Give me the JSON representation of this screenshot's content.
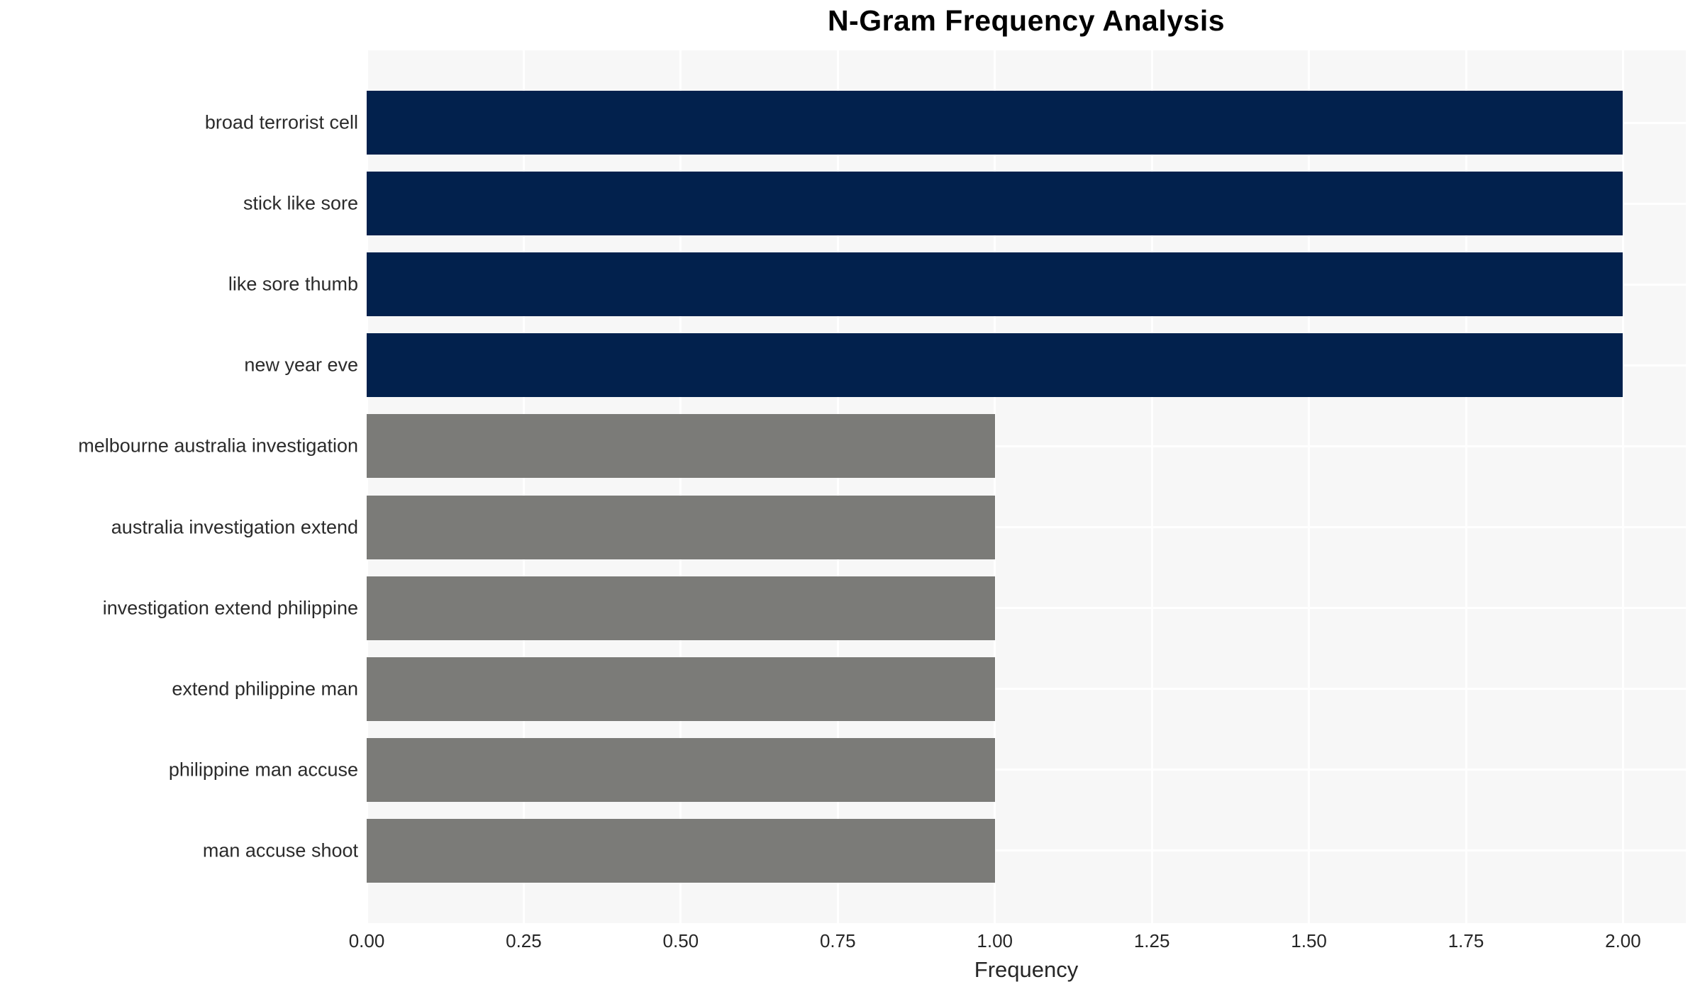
{
  "title": "N-Gram Frequency Analysis",
  "chart_data": {
    "type": "bar",
    "orientation": "horizontal",
    "title": "N-Gram Frequency Analysis",
    "xlabel": "Frequency",
    "ylabel": "",
    "categories": [
      "broad terrorist cell",
      "stick like sore",
      "like sore thumb",
      "new year eve",
      "melbourne australia investigation",
      "australia investigation extend",
      "investigation extend philippine",
      "extend philippine man",
      "philippine man accuse",
      "man accuse shoot"
    ],
    "values": [
      2,
      2,
      2,
      2,
      1,
      1,
      1,
      1,
      1,
      1
    ],
    "bar_colors": [
      "#02214d",
      "#02214d",
      "#02214d",
      "#02214d",
      "#7b7b78",
      "#7b7b78",
      "#7b7b78",
      "#7b7b78",
      "#7b7b78",
      "#7b7b78"
    ],
    "xlim": [
      0,
      2.1
    ],
    "xticks": [
      0,
      0.25,
      0.5,
      0.75,
      1.0,
      1.25,
      1.5,
      1.75,
      2.0
    ],
    "xtick_labels": [
      "0.00",
      "0.25",
      "0.50",
      "0.75",
      "1.00",
      "1.25",
      "1.50",
      "1.75",
      "2.00"
    ],
    "grid": true,
    "legend": "none",
    "colors": {
      "plot_background": "#f7f7f7",
      "grid": "#ffffff",
      "tick_text": "#262626",
      "title_text": "#000000",
      "bar_high": "#02214d",
      "bar_low": "#7b7b78"
    }
  }
}
